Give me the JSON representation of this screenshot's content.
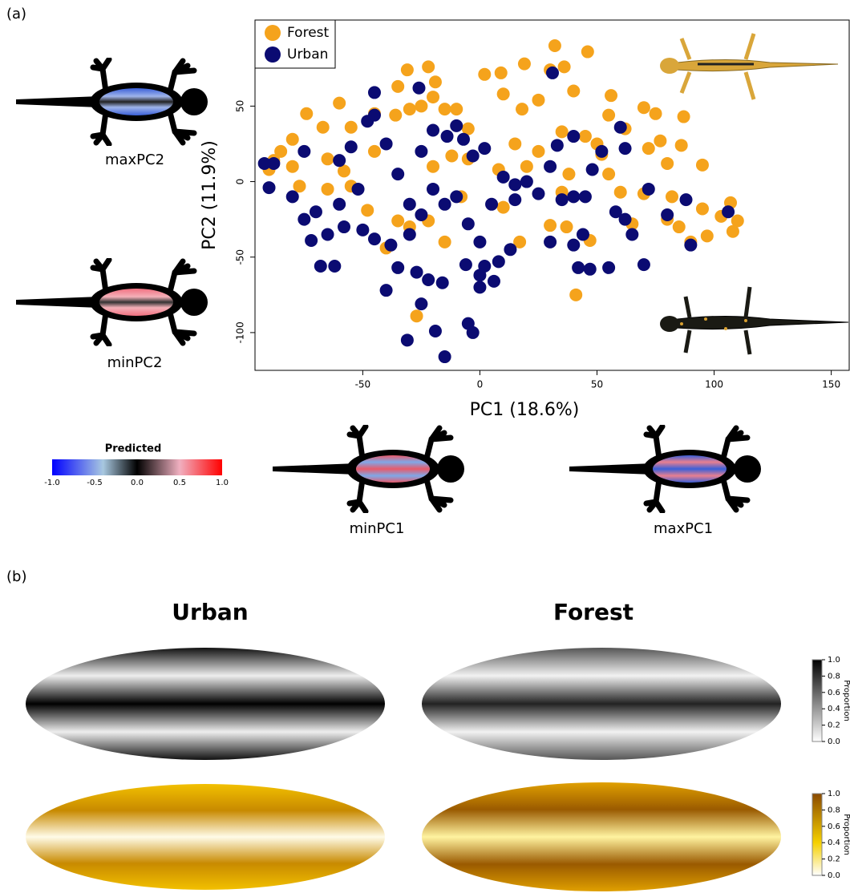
{
  "panel_labels": [
    "(a)",
    "(b)"
  ],
  "chart_data": {
    "type": "scatter",
    "xlabel": "PC1 (18.6%)",
    "ylabel": "PC2 (11.9%)",
    "xlim": [
      -96,
      158
    ],
    "ylim": [
      -125,
      107
    ],
    "xticks": [
      -50,
      0,
      50,
      100,
      150
    ],
    "yticks": [
      -100,
      -50,
      0,
      50
    ],
    "legend": "top-left",
    "series": [
      {
        "name": "Forest",
        "color": "#f5a31c",
        "x": [
          32,
          46,
          19,
          36,
          30,
          2,
          9,
          -22,
          -31,
          -19,
          -35,
          -20,
          -45,
          -25,
          -30,
          -36,
          -15,
          -10,
          -60,
          -74,
          -55,
          -67,
          -80,
          -85,
          -88,
          -80,
          -65,
          -58,
          -45,
          -20,
          -12,
          -5,
          10,
          18,
          25,
          40,
          56,
          70,
          75,
          87,
          55,
          62,
          77,
          86,
          95,
          80,
          72,
          50,
          45,
          35,
          25,
          15,
          8,
          20,
          38,
          60,
          70,
          82,
          95,
          103,
          107,
          110,
          108,
          97,
          90,
          85,
          80,
          65,
          47,
          37,
          30,
          41,
          -27,
          -15,
          -30,
          -40,
          -55,
          -65,
          -77,
          -90,
          -5,
          -8,
          17,
          10,
          55,
          52,
          35,
          -48,
          -22,
          -35
        ],
        "values": [
          90,
          86,
          78,
          76,
          74,
          71,
          72,
          76,
          74,
          66,
          63,
          56,
          45,
          50,
          48,
          44,
          48,
          48,
          52,
          45,
          36,
          36,
          28,
          20,
          14,
          10,
          15,
          7,
          20,
          10,
          17,
          35,
          58,
          48,
          54,
          60,
          57,
          49,
          45,
          43,
          44,
          35,
          27,
          24,
          11,
          12,
          22,
          25,
          30,
          33,
          20,
          25,
          8,
          10,
          5,
          -7,
          -8,
          -10,
          -18,
          -23,
          -14,
          -26,
          -33,
          -36,
          -40,
          -30,
          -25,
          -28,
          -39,
          -30,
          -29,
          -75,
          -89,
          -40,
          -30,
          -44,
          -3,
          -5,
          -3,
          8,
          15,
          -10,
          -40,
          -17,
          5,
          18,
          -7,
          -19,
          -26,
          -26
        ]
      },
      {
        "name": "Urban",
        "color": "#0b0b72",
        "x": [
          -45,
          -26,
          31,
          -48,
          -45,
          -10,
          -14,
          -20,
          -7,
          2,
          -3,
          -25,
          -40,
          -55,
          -60,
          -75,
          -88,
          -92,
          -90,
          -80,
          -70,
          -75,
          -72,
          -65,
          -68,
          -62,
          -58,
          -50,
          -45,
          -38,
          -40,
          -35,
          -30,
          -27,
          -25,
          -20,
          -15,
          -10,
          -5,
          0,
          2,
          0,
          0,
          -6,
          -16,
          -22,
          -25,
          -19,
          -15,
          -31,
          -5,
          -3,
          8,
          6,
          13,
          15,
          20,
          25,
          30,
          35,
          33,
          40,
          48,
          52,
          60,
          62,
          58,
          62,
          65,
          70,
          72,
          80,
          88,
          90,
          106,
          30,
          40,
          42,
          47,
          55,
          44,
          40,
          45,
          15,
          10,
          5,
          -52,
          -60,
          -30,
          -35
        ],
        "values": [
          59,
          62,
          72,
          40,
          44,
          37,
          30,
          34,
          28,
          22,
          17,
          20,
          25,
          23,
          14,
          20,
          12,
          12,
          -4,
          -10,
          -20,
          -25,
          -39,
          -35,
          -56,
          -56,
          -30,
          -32,
          -38,
          -42,
          -72,
          -57,
          -35,
          -60,
          -22,
          -5,
          -15,
          -10,
          -28,
          -40,
          -56,
          -62,
          -70,
          -55,
          -67,
          -65,
          -81,
          -99,
          -116,
          -105,
          -94,
          -100,
          -53,
          -66,
          -45,
          -12,
          0,
          -8,
          10,
          -12,
          24,
          30,
          8,
          20,
          36,
          22,
          -20,
          -25,
          -35,
          -55,
          -5,
          -22,
          -12,
          -42,
          -20,
          -40,
          -42,
          -57,
          -58,
          -57,
          -35,
          -10,
          -10,
          -2,
          3,
          -15,
          -5,
          -15,
          -15,
          5
        ]
      }
    ]
  },
  "shape_labels": {
    "maxPC2": "maxPC2",
    "minPC2": "minPC2",
    "minPC1": "minPC1",
    "maxPC1": "maxPC1"
  },
  "predicted_legend": {
    "title": "Predicted",
    "ticks": [
      "-1.0",
      "-0.5",
      "0.0",
      "0.5",
      "1.0"
    ]
  },
  "panel_b": {
    "titles": [
      "Urban",
      "Forest"
    ],
    "colorbar_label": "Proportion",
    "colorbar_ticks": [
      "1.0",
      "0.8",
      "0.6",
      "0.4",
      "0.2",
      "0.0"
    ]
  }
}
